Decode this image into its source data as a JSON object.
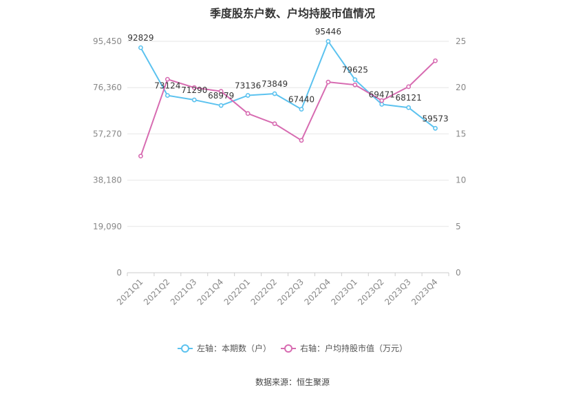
{
  "chart_data": {
    "type": "line",
    "title": "季度股东户数、户均持股市值情况",
    "source": "数据来源：恒生聚源",
    "categories": [
      "2021Q1",
      "2021Q2",
      "2021Q3",
      "2021Q4",
      "2022Q1",
      "2022Q2",
      "2022Q3",
      "2022Q4",
      "2023Q1",
      "2023Q2",
      "2023Q3",
      "2023Q4"
    ],
    "left_axis": {
      "ticks": [
        "0",
        "19,090",
        "38,180",
        "57,270",
        "76,360",
        "95,450"
      ],
      "ylim": [
        0,
        95450
      ]
    },
    "right_axis": {
      "ticks": [
        "0",
        "5",
        "10",
        "15",
        "20",
        "25"
      ],
      "ylim": [
        0,
        25
      ]
    },
    "grid": true,
    "legend_position": "bottom",
    "series": [
      {
        "name": "左轴：本期数（户）",
        "axis": "left",
        "color": "#5bc2ef",
        "values": [
          92829,
          73124,
          71290,
          68979,
          73136,
          73849,
          67440,
          95446,
          79625,
          69471,
          68121,
          59573
        ],
        "labels": [
          "92829",
          "73124",
          "71290",
          "68979",
          "73136",
          "73849",
          "67440",
          "95446",
          "79625",
          "69471",
          "68121",
          "59573"
        ]
      },
      {
        "name": "右轴：户均持股市值（万元）",
        "axis": "right",
        "color": "#d76bb1",
        "values": [
          12.6,
          20.9,
          20.0,
          19.6,
          17.2,
          16.1,
          14.3,
          20.6,
          20.3,
          18.6,
          20.1,
          22.9
        ]
      }
    ]
  }
}
